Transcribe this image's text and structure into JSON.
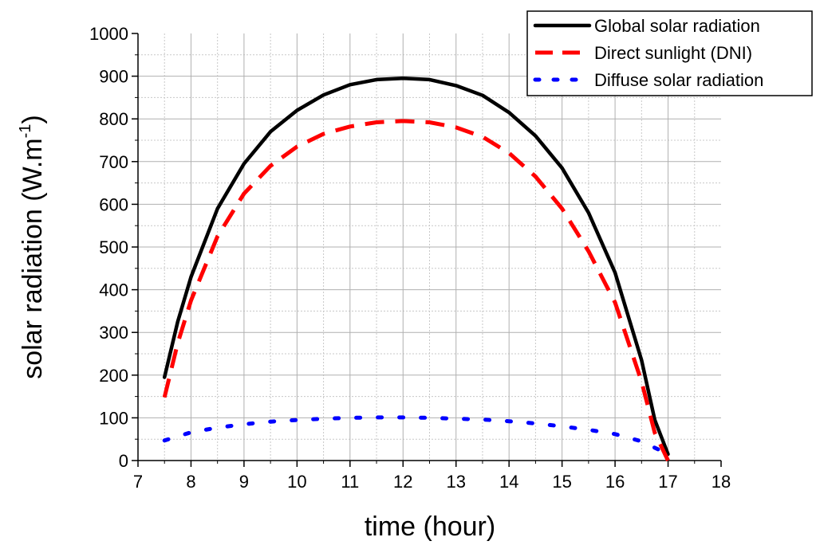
{
  "chart_data": {
    "type": "line",
    "xlabel": "time (hour)",
    "ylabel_main": "solar radiation (W.m",
    "ylabel_sup": "-1",
    "ylabel_close": ")",
    "xlim": [
      7,
      18
    ],
    "ylim": [
      0,
      1000
    ],
    "x_ticks": [
      7,
      8,
      9,
      10,
      11,
      12,
      13,
      14,
      15,
      16,
      17,
      18
    ],
    "y_ticks": [
      0,
      100,
      200,
      300,
      400,
      500,
      600,
      700,
      800,
      900,
      1000
    ],
    "grid": true,
    "legend_position": "top-right",
    "series": [
      {
        "name": "Global solar radiation",
        "color": "#000000",
        "style": "solid",
        "x": [
          7.5,
          7.75,
          8,
          8.5,
          9,
          9.5,
          10,
          10.5,
          11,
          11.5,
          12,
          12.5,
          13,
          13.5,
          14,
          14.5,
          15,
          15.5,
          16,
          16.5,
          16.75,
          17
        ],
        "y": [
          195,
          325,
          430,
          590,
          695,
          770,
          820,
          856,
          880,
          892,
          895,
          892,
          878,
          855,
          815,
          760,
          685,
          580,
          440,
          235,
          95,
          15
        ]
      },
      {
        "name": "Direct sunlight (DNI)",
        "color": "#ff0000",
        "style": "dashed",
        "x": [
          7.5,
          7.75,
          8,
          8.5,
          9,
          9.5,
          10,
          10.5,
          11,
          11.5,
          12,
          12.5,
          13,
          13.5,
          14,
          14.5,
          15,
          15.5,
          16,
          16.5,
          16.75,
          17
        ],
        "y": [
          148,
          275,
          375,
          525,
          625,
          690,
          735,
          765,
          782,
          792,
          795,
          792,
          780,
          758,
          720,
          665,
          590,
          490,
          370,
          185,
          65,
          0
        ]
      },
      {
        "name": "Diffuse solar radiation",
        "color": "#0000ff",
        "style": "dotted",
        "x": [
          7.5,
          8,
          8.5,
          9,
          9.5,
          10,
          10.5,
          11,
          11.5,
          12,
          12.5,
          13,
          13.5,
          14,
          14.5,
          15,
          15.5,
          16,
          16.5,
          17
        ],
        "y": [
          47,
          66,
          77,
          85,
          91,
          95,
          98,
          100,
          101,
          101,
          100,
          98,
          96,
          92,
          87,
          80,
          72,
          62,
          45,
          15
        ]
      }
    ]
  }
}
